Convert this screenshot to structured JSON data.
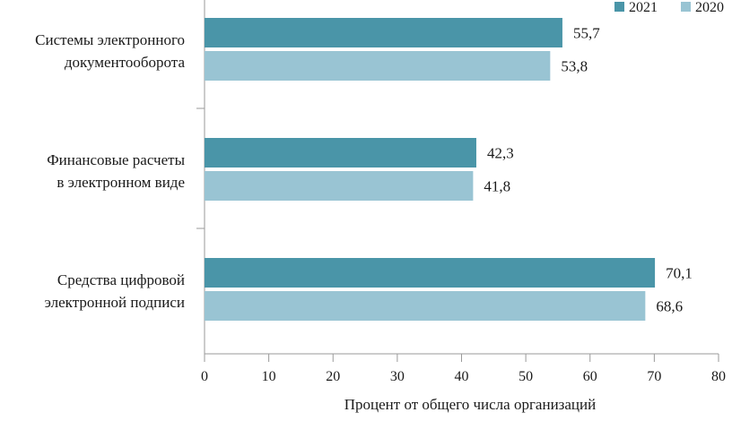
{
  "chart_data": {
    "type": "bar",
    "orientation": "horizontal",
    "categories": [
      [
        "Системы электронного",
        "документооборота"
      ],
      [
        "Финансовые расчеты",
        "в электронном виде"
      ],
      [
        "Средства цифровой",
        "электронной подписи"
      ]
    ],
    "series": [
      {
        "name": "2021",
        "values": [
          55.7,
          42.3,
          70.1
        ],
        "labels": [
          "55,7",
          "42,3",
          "70,1"
        ],
        "color": "#4a95a8"
      },
      {
        "name": "2020",
        "values": [
          53.8,
          41.8,
          68.6
        ],
        "labels": [
          "53,8",
          "41,8",
          "68,6"
        ],
        "color": "#99c4d3"
      }
    ],
    "xlabel": "Процент от общего числа организаций",
    "xlim": [
      0,
      80
    ],
    "xticks": [
      0,
      10,
      20,
      30,
      40,
      50,
      60,
      70,
      80
    ],
    "grid": false,
    "legend_position": "top-right"
  }
}
